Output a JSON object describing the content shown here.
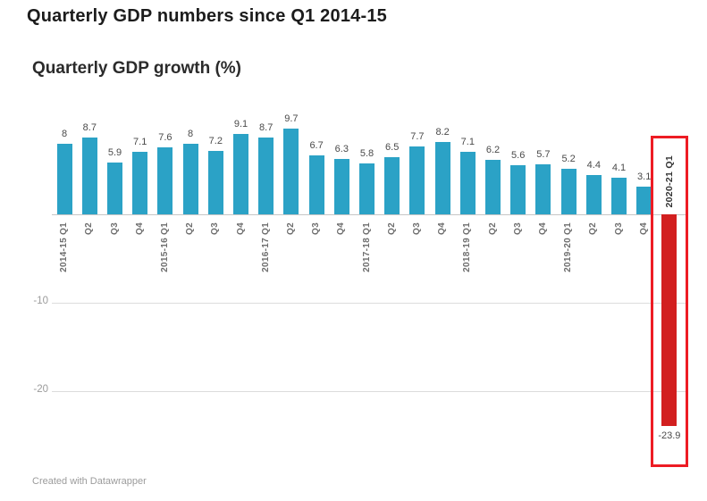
{
  "page": {
    "heading": "Quarterly GDP numbers since Q1 2014-15"
  },
  "chart": {
    "title": "Quarterly GDP growth (%)",
    "footer": "Created with Datawrapper",
    "colors": {
      "bar": "#2ba2c6",
      "negative_bar": "#d21f1f",
      "highlight_border": "#ed1c24",
      "gridline": "#dcdcdc",
      "zero_line": "#c6c6c6"
    }
  },
  "chart_data": {
    "type": "bar",
    "title": "Quarterly GDP growth (%)",
    "xlabel": "",
    "ylabel": "Quarterly GDP growth (%)",
    "ylim": [
      -25,
      10
    ],
    "grid": "horizontal",
    "legend_position": "none",
    "categories": [
      "2014-15 Q1",
      "Q2",
      "Q3",
      "Q4",
      "2015-16 Q1",
      "Q2",
      "Q3",
      "Q4",
      "2016-17 Q1",
      "Q2",
      "Q3",
      "Q4",
      "2017-18 Q1",
      "Q2",
      "Q3",
      "Q4",
      "2018-19 Q1",
      "Q2",
      "Q3",
      "Q4",
      "2019-20 Q1",
      "Q2",
      "Q3",
      "Q4",
      "2020-21 Q1"
    ],
    "values": [
      8,
      8.7,
      5.9,
      7.1,
      7.6,
      8,
      7.2,
      9.1,
      8.7,
      9.7,
      6.7,
      6.3,
      5.8,
      6.5,
      7.7,
      8.2,
      7.1,
      6.2,
      5.6,
      5.7,
      5.2,
      4.4,
      4.1,
      3.1,
      -23.9
    ],
    "value_labels": [
      "8",
      "8.7",
      "5.9",
      "7.1",
      "7.6",
      "8",
      "7.2",
      "9.1",
      "8.7",
      "9.7",
      "6.7",
      "6.3",
      "5.8",
      "6.5",
      "7.7",
      "8.2",
      "7.1",
      "6.2",
      "5.6",
      "5.7",
      "5.2",
      "4.4",
      "4.1",
      "3.1",
      "-23.9"
    ],
    "gridlines": [
      -10,
      -20
    ],
    "gridline_labels": [
      "-10",
      "-20"
    ],
    "highlight_index": 24
  }
}
